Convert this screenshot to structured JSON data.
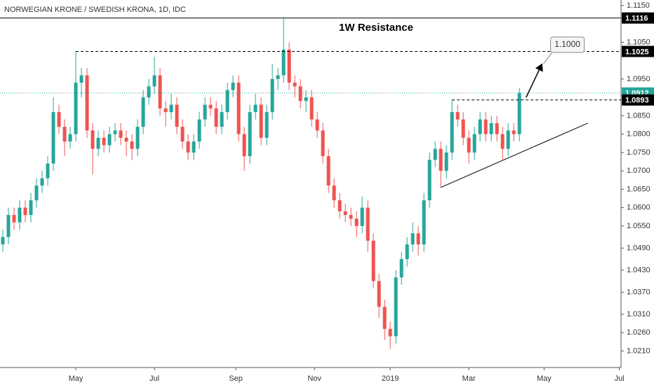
{
  "chart_data": {
    "type": "candlestick",
    "title": "NORWEGIAN KRONE / SWEDISH KRONA, 1D, IDC",
    "annotation": "1W Resistance",
    "up_color": "#26a69a",
    "down_color": "#ef5350",
    "xlim": [
      -0.5,
      110.1
    ],
    "xticks": [
      {
        "value": 13,
        "label": "May"
      },
      {
        "value": 27,
        "label": "Jul"
      },
      {
        "value": 41.5,
        "label": "Sep"
      },
      {
        "value": 55.5,
        "label": "Nov"
      },
      {
        "value": 69,
        "label": "2019"
      },
      {
        "value": 83,
        "label": "Mar"
      },
      {
        "value": 96.4,
        "label": "May"
      },
      {
        "value": 109.8,
        "label": "Jul"
      }
    ],
    "ylim": [
      1.0165,
      1.1165
    ],
    "yticks": [
      {
        "value": 1.115,
        "label": "1.1150"
      },
      {
        "value": 1.105,
        "label": "1.1050"
      },
      {
        "value": 1.095,
        "label": "1.0950"
      },
      {
        "value": 1.085,
        "label": "1.0850"
      },
      {
        "value": 1.08,
        "label": "1.0800"
      },
      {
        "value": 1.075,
        "label": "1.0750"
      },
      {
        "value": 1.07,
        "label": "1.0700"
      },
      {
        "value": 1.065,
        "label": "1.0650"
      },
      {
        "value": 1.06,
        "label": "1.0600"
      },
      {
        "value": 1.055,
        "label": "1.0550"
      },
      {
        "value": 1.049,
        "label": "1.0490"
      },
      {
        "value": 1.043,
        "label": "1.0430"
      },
      {
        "value": 1.037,
        "label": "1.0370"
      },
      {
        "value": 1.031,
        "label": "1.0310"
      },
      {
        "value": 1.026,
        "label": "1.0260"
      },
      {
        "value": 1.021,
        "label": "1.0210"
      }
    ],
    "grid": false,
    "open": [
      1.05,
      1.052,
      1.058,
      1.056,
      1.06,
      1.058,
      1.062,
      1.066,
      1.068,
      1.072,
      1.086,
      1.082,
      1.078,
      1.08,
      1.094,
      1.096,
      1.081,
      1.076,
      1.079,
      1.077,
      1.08,
      1.081,
      1.079,
      1.078,
      1.076,
      1.082,
      1.09,
      1.093,
      1.096,
      1.087,
      1.086,
      1.088,
      1.082,
      1.078,
      1.075,
      1.078,
      1.084,
      1.088,
      1.087,
      1.082,
      1.086,
      1.092,
      1.094,
      1.08,
      1.074,
      1.086,
      1.088,
      1.079,
      1.086,
      1.095,
      1.096,
      1.103,
      1.094,
      1.093,
      1.089,
      1.09,
      1.084,
      1.081,
      1.074,
      1.066,
      1.062,
      1.059,
      1.058,
      1.057,
      1.055,
      1.06,
      1.051,
      1.04,
      1.033,
      1.027,
      1.025,
      1.041,
      1.046,
      1.05,
      1.053,
      1.05,
      1.062,
      1.073,
      1.076,
      1.07,
      1.075,
      1.086,
      1.084,
      1.079,
      1.075,
      1.08,
      1.084,
      1.08,
      1.083,
      1.08,
      1.076,
      1.081,
      1.08
    ],
    "high": [
      1.054,
      1.06,
      1.06,
      1.062,
      1.062,
      1.064,
      1.068,
      1.07,
      1.074,
      1.09,
      1.088,
      1.084,
      1.082,
      1.1025,
      1.098,
      1.098,
      1.083,
      1.081,
      1.081,
      1.082,
      1.083,
      1.083,
      1.081,
      1.08,
      1.084,
      1.092,
      1.095,
      1.101,
      1.098,
      1.089,
      1.091,
      1.09,
      1.084,
      1.08,
      1.08,
      1.086,
      1.09,
      1.09,
      1.089,
      1.088,
      1.094,
      1.096,
      1.096,
      1.082,
      1.088,
      1.091,
      1.09,
      1.088,
      1.099,
      1.098,
      1.1116,
      1.105,
      1.096,
      1.095,
      1.092,
      1.092,
      1.086,
      1.083,
      1.076,
      1.068,
      1.064,
      1.061,
      1.06,
      1.059,
      1.063,
      1.062,
      1.053,
      1.042,
      1.035,
      1.029,
      1.043,
      1.048,
      1.052,
      1.056,
      1.055,
      1.064,
      1.075,
      1.078,
      1.078,
      1.077,
      1.0893,
      1.088,
      1.086,
      1.081,
      1.082,
      1.086,
      1.086,
      1.085,
      1.085,
      1.082,
      1.083,
      1.083,
      1.0925
    ],
    "low": [
      1.048,
      1.05,
      1.054,
      1.054,
      1.056,
      1.056,
      1.06,
      1.064,
      1.066,
      1.07,
      1.08,
      1.074,
      1.076,
      1.078,
      1.09,
      1.079,
      1.069,
      1.074,
      1.075,
      1.075,
      1.078,
      1.077,
      1.074,
      1.073,
      1.074,
      1.08,
      1.088,
      1.091,
      1.085,
      1.082,
      1.084,
      1.08,
      1.076,
      1.073,
      1.073,
      1.076,
      1.082,
      1.085,
      1.08,
      1.08,
      1.084,
      1.09,
      1.078,
      1.07,
      1.072,
      1.084,
      1.077,
      1.077,
      1.084,
      1.092,
      1.094,
      1.092,
      1.09,
      1.087,
      1.086,
      1.082,
      1.079,
      1.072,
      1.064,
      1.06,
      1.057,
      1.056,
      1.055,
      1.052,
      1.053,
      1.048,
      1.038,
      1.03,
      1.024,
      1.0215,
      1.023,
      1.039,
      1.044,
      1.048,
      1.047,
      1.048,
      1.06,
      1.071,
      1.0655,
      1.068,
      1.073,
      1.082,
      1.077,
      1.072,
      1.073,
      1.078,
      1.078,
      1.078,
      1.078,
      1.073,
      1.074,
      1.078,
      1.078
    ],
    "close": [
      1.052,
      1.058,
      1.056,
      1.06,
      1.058,
      1.062,
      1.066,
      1.068,
      1.072,
      1.086,
      1.082,
      1.078,
      1.08,
      1.094,
      1.096,
      1.081,
      1.076,
      1.079,
      1.077,
      1.08,
      1.081,
      1.079,
      1.078,
      1.076,
      1.082,
      1.09,
      1.093,
      1.096,
      1.087,
      1.086,
      1.088,
      1.082,
      1.078,
      1.075,
      1.078,
      1.084,
      1.088,
      1.087,
      1.082,
      1.086,
      1.092,
      1.094,
      1.08,
      1.074,
      1.086,
      1.088,
      1.079,
      1.086,
      1.095,
      1.096,
      1.103,
      1.094,
      1.093,
      1.089,
      1.09,
      1.084,
      1.081,
      1.074,
      1.066,
      1.062,
      1.059,
      1.058,
      1.057,
      1.055,
      1.06,
      1.051,
      1.04,
      1.033,
      1.027,
      1.025,
      1.041,
      1.046,
      1.05,
      1.053,
      1.05,
      1.062,
      1.073,
      1.076,
      1.07,
      1.075,
      1.086,
      1.084,
      1.079,
      1.075,
      1.08,
      1.084,
      1.08,
      1.083,
      1.08,
      1.076,
      1.081,
      1.08,
      1.0912
    ],
    "levels": [
      {
        "value": 1.1116,
        "style": "solid",
        "color": "#000000",
        "from": -0.5
      },
      {
        "value": 1.1025,
        "style": "dashed",
        "color": "#000000",
        "from": 13
      },
      {
        "value": 1.0912,
        "style": "dotted",
        "color": "#26a69a",
        "from": -0.5
      },
      {
        "value": 1.0893,
        "style": "dashed",
        "color": "#000000",
        "from": 80
      }
    ],
    "trendline": [
      [
        78,
        1.0655
      ],
      [
        104.2,
        1.083
      ]
    ],
    "arrow": [
      [
        93.2,
        1.09
      ],
      [
        96,
        1.099
      ]
    ],
    "callout": {
      "value": 1.1,
      "label": "1.1000",
      "at": 96.3,
      "price": 1.0992
    }
  }
}
